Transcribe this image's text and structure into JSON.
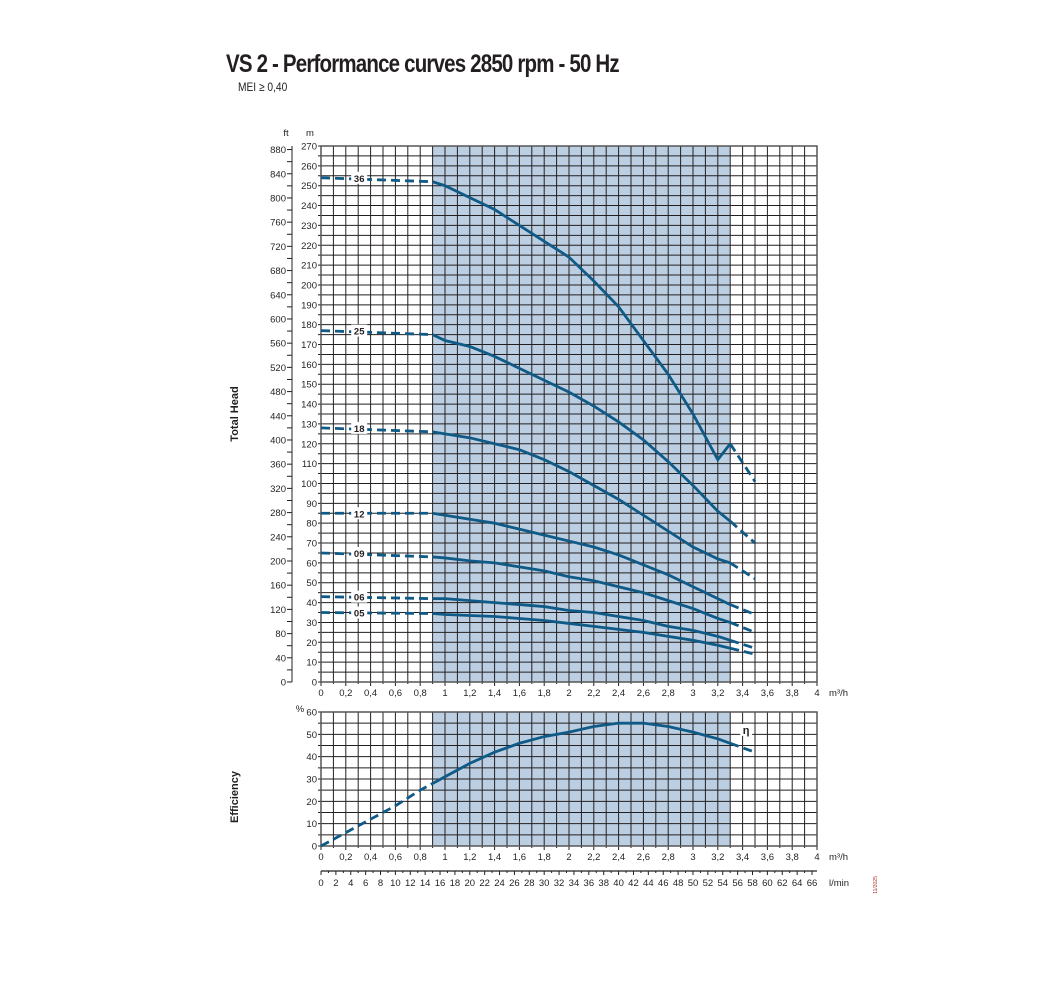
{
  "title": "VS 2 - Performance curves 2850 rpm - 50 Hz",
  "subtitle": "MEI ≥ 0,40",
  "date_code": "11/2025",
  "colors": {
    "curve": "#0f5a86",
    "shade": "#bccfe2",
    "grid": "#231f20"
  },
  "chart_data": [
    {
      "type": "line",
      "title": "Total Head",
      "ylabel": "Total Head",
      "yunit_left": "ft",
      "yunit": "m",
      "xunit": "m³/h",
      "xlim": [
        0,
        4
      ],
      "ylim": [
        0,
        270
      ],
      "ft_lim": [
        0,
        880
      ],
      "grid": true,
      "shaded_range": [
        0.9,
        3.3
      ],
      "x_ticks": [
        "0",
        "0,2",
        "0,4",
        "0,6",
        "0,8",
        "1",
        "1,2",
        "1,4",
        "1,6",
        "1,8",
        "2",
        "2,2",
        "2,4",
        "2,6",
        "2,8",
        "3",
        "3,2",
        "3,4",
        "3,6",
        "3,8",
        "4"
      ],
      "y_ticks": [
        "0",
        "10",
        "20",
        "30",
        "40",
        "50",
        "60",
        "70",
        "80",
        "90",
        "100",
        "110",
        "120",
        "130",
        "140",
        "150",
        "160",
        "170",
        "180",
        "190",
        "200",
        "210",
        "220",
        "230",
        "240",
        "250",
        "260",
        "270"
      ],
      "ft_ticks": [
        "0",
        "40",
        "80",
        "120",
        "160",
        "200",
        "240",
        "280",
        "320",
        "360",
        "400",
        "440",
        "480",
        "520",
        "560",
        "600",
        "640",
        "680",
        "720",
        "760",
        "800",
        "840",
        "880"
      ],
      "x": [
        0,
        0.9,
        1.0,
        1.2,
        1.4,
        1.6,
        1.8,
        2.0,
        2.2,
        2.4,
        2.6,
        2.8,
        3.0,
        3.2,
        3.3,
        3.5
      ],
      "series": [
        {
          "name": "36",
          "values": [
            254,
            252,
            250,
            244,
            238,
            230,
            222,
            214,
            202,
            189,
            172,
            155,
            135,
            112,
            120,
            101
          ]
        },
        {
          "name": "25",
          "values": [
            177,
            175,
            172,
            169,
            164,
            158,
            152,
            146,
            139,
            131,
            122,
            111,
            99,
            86,
            81,
            70
          ]
        },
        {
          "name": "18",
          "values": [
            128,
            126,
            125,
            123,
            120,
            117,
            112,
            106,
            99,
            92,
            84,
            76,
            68,
            62,
            60,
            52
          ]
        },
        {
          "name": "12",
          "values": [
            85,
            85,
            84,
            82,
            80,
            77,
            74,
            71,
            68,
            64,
            59,
            54,
            48,
            42,
            39,
            34
          ]
        },
        {
          "name": "09",
          "values": [
            65,
            63,
            62.5,
            61,
            60,
            58,
            56,
            53,
            51,
            48,
            45,
            41,
            37,
            32,
            30,
            25
          ]
        },
        {
          "name": "06",
          "values": [
            43,
            42,
            42,
            41,
            40,
            39,
            38,
            36,
            35,
            33,
            31,
            28,
            26,
            23,
            21,
            17
          ]
        },
        {
          "name": "05",
          "values": [
            35,
            34.5,
            34,
            33.5,
            33,
            32,
            31,
            29.5,
            28,
            26.5,
            25,
            23,
            21,
            18.5,
            17,
            14
          ]
        }
      ]
    },
    {
      "type": "line",
      "title": "Efficiency",
      "ylabel": "Efficiency",
      "yunit": "%",
      "xunit": "m³/h",
      "xlim": [
        0,
        4
      ],
      "ylim": [
        0,
        60
      ],
      "grid": true,
      "shaded_range": [
        0.9,
        3.3
      ],
      "y_ticks": [
        "0",
        "10",
        "20",
        "30",
        "40",
        "50",
        "60"
      ],
      "x_ticks": [
        "0",
        "0,2",
        "0,4",
        "0,6",
        "0,8",
        "1",
        "1,2",
        "1,4",
        "1,6",
        "1,8",
        "2",
        "2,2",
        "2,4",
        "2,6",
        "2,8",
        "3",
        "3,2",
        "3,4",
        "3,6",
        "3,8",
        "4"
      ],
      "x": [
        0,
        0.2,
        0.4,
        0.6,
        0.8,
        0.9,
        1.0,
        1.2,
        1.4,
        1.6,
        1.8,
        2.0,
        2.2,
        2.4,
        2.6,
        2.8,
        3.0,
        3.2,
        3.3,
        3.5
      ],
      "series": [
        {
          "name": "η",
          "values": [
            0,
            6,
            12,
            18,
            25,
            28,
            31,
            37,
            42,
            46,
            49,
            51,
            53.5,
            55,
            55,
            53.5,
            51,
            48,
            46,
            42
          ]
        }
      ]
    },
    {
      "type": "axis",
      "xunit": "l/min",
      "xlim": [
        0,
        66.67
      ],
      "x_ticks": [
        "0",
        "2",
        "4",
        "6",
        "8",
        "10",
        "12",
        "14",
        "16",
        "18",
        "20",
        "22",
        "24",
        "26",
        "28",
        "30",
        "32",
        "34",
        "36",
        "38",
        "40",
        "42",
        "44",
        "46",
        "48",
        "50",
        "52",
        "54",
        "56",
        "58",
        "60",
        "62",
        "64",
        "66"
      ]
    }
  ]
}
